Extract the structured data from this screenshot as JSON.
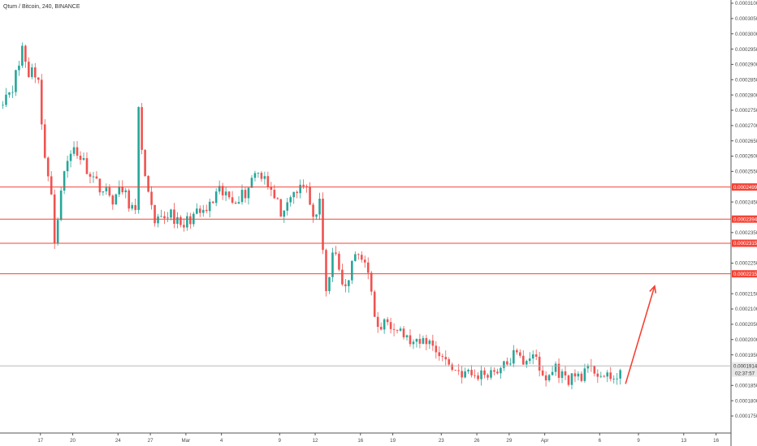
{
  "header": {
    "symbol": "Qtum / Bitcoin, 240, BINANCE"
  },
  "colors": {
    "up": "#26a69a",
    "down": "#ef5350",
    "level_line": "#f44336",
    "arrow": "#f44336",
    "current_tag": "#e8e8e8",
    "grid_axis": "#555555"
  },
  "chart_data": {
    "type": "candlestick",
    "title": "Qtum / Bitcoin, 240, BINANCE",
    "y_axis": {
      "position": "right",
      "range": [
        0.000172,
        0.000311
      ],
      "tick_labels": [
        "0.0003100",
        "0.0003050",
        "0.0003000",
        "0.0002950",
        "0.0002900",
        "0.0002850",
        "0.0002800",
        "0.0002750",
        "0.0002700",
        "0.0002650",
        "0.0002600",
        "0.0002550",
        "0.0002450",
        "0.0002350",
        "0.0002250",
        "0.0002150",
        "0.0002100",
        "0.0002050",
        "0.0002000",
        "0.0001950",
        "0.0001850",
        "0.0001800",
        "0.0001750"
      ]
    },
    "x_axis": {
      "tick_labels": [
        "17",
        "20",
        "24",
        "27",
        "Mar",
        "4",
        "9",
        "12",
        "16",
        "19",
        "23",
        "26",
        "29",
        "Apr",
        "6",
        "9",
        "13",
        "16"
      ]
    },
    "horizontal_levels": [
      {
        "value": 0.0002499,
        "label": "0.0002499"
      },
      {
        "value": 0.0002394,
        "label": "0.0002394"
      },
      {
        "value": 0.0002315,
        "label": "0.0002315"
      },
      {
        "value": 0.0002215,
        "label": "0.0002215"
      }
    ],
    "current_price": {
      "value": 0.0001914,
      "label": "0.0001914",
      "countdown": "02:37:57"
    },
    "arrow": {
      "from": {
        "bar": 193,
        "price": 0.0001855
      },
      "to": {
        "bar": 202,
        "price": 0.0002175
      }
    },
    "price_path": [
      [
        0,
        0.000279
      ],
      [
        3,
        0.000283
      ],
      [
        5,
        0.00029
      ],
      [
        6,
        0.000296
      ],
      [
        8,
        0.000286
      ],
      [
        9,
        0.00029
      ],
      [
        11,
        0.000284
      ],
      [
        13,
        0.00026
      ],
      [
        15,
        0.000246
      ],
      [
        16,
        0.000232
      ],
      [
        18,
        0.00025
      ],
      [
        20,
        0.000258
      ],
      [
        22,
        0.000263
      ],
      [
        25,
        0.000258
      ],
      [
        28,
        0.000253
      ],
      [
        31,
        0.000249
      ],
      [
        34,
        0.000246
      ],
      [
        37,
        0.000249
      ],
      [
        41,
        0.000241
      ],
      [
        42,
        0.000274
      ],
      [
        43,
        0.000263
      ],
      [
        45,
        0.000247
      ],
      [
        47,
        0.000237
      ],
      [
        52,
        0.000242
      ],
      [
        55,
        0.000236
      ],
      [
        58,
        0.00024
      ],
      [
        63,
        0.000242
      ],
      [
        67,
        0.000248
      ],
      [
        71,
        0.000246
      ],
      [
        75,
        0.000248
      ],
      [
        78,
        0.000255
      ],
      [
        81,
        0.000254
      ],
      [
        84,
        0.000246
      ],
      [
        87,
        0.00024
      ],
      [
        90,
        0.000248
      ],
      [
        94,
        0.00025
      ],
      [
        96,
        0.00024
      ],
      [
        98,
        0.000244
      ],
      [
        100,
        0.000214
      ],
      [
        102,
        0.00023
      ],
      [
        104,
        0.000222
      ],
      [
        106,
        0.000216
      ],
      [
        109,
        0.000228
      ],
      [
        112,
        0.000227
      ],
      [
        114,
        0.000214
      ],
      [
        116,
        0.000203
      ],
      [
        119,
        0.000206
      ],
      [
        122,
        0.000205
      ],
      [
        125,
        0.0002
      ],
      [
        128,
        0.000198
      ],
      [
        131,
        0.0002
      ],
      [
        134,
        0.000197
      ],
      [
        137,
        0.000193
      ],
      [
        140,
        0.00019
      ],
      [
        143,
        0.000189
      ],
      [
        146,
        0.000188
      ],
      [
        149,
        0.000189
      ],
      [
        152,
        0.00019
      ],
      [
        155,
        0.000191
      ],
      [
        158,
        0.000195
      ],
      [
        161,
        0.000193
      ],
      [
        164,
        0.000196
      ],
      [
        166,
        0.000189
      ],
      [
        168,
        0.000187
      ],
      [
        171,
        0.000191
      ],
      [
        174,
        0.000187
      ],
      [
        177,
        0.000188
      ],
      [
        180,
        0.000189
      ],
      [
        183,
        0.00019
      ],
      [
        186,
        0.000188
      ],
      [
        188,
        0.000186
      ],
      [
        191,
        0.00019
      ]
    ]
  }
}
